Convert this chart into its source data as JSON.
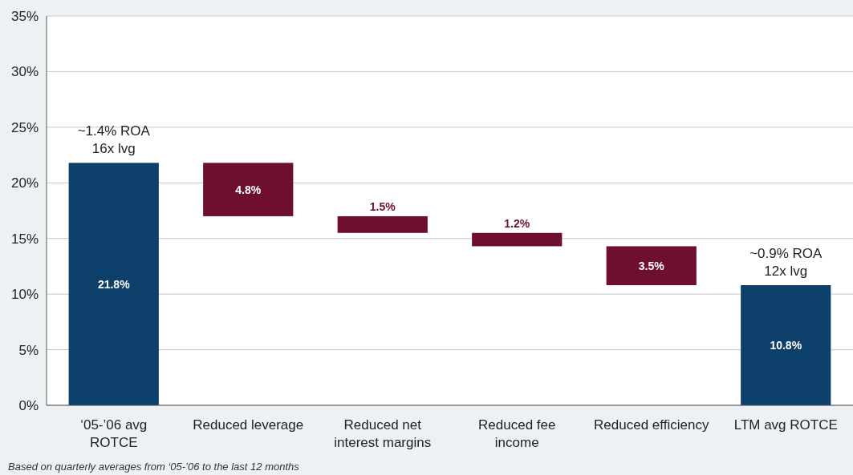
{
  "chart_data": {
    "type": "bar",
    "categories": [
      "‘05-’06 avg\nROTCE",
      "Reduced leverage",
      "Reduced net\ninterest margins",
      "Reduced fee\nincome",
      "Reduced efficiency",
      "LTM avg ROTCE"
    ],
    "values": [
      21.8,
      4.8,
      1.5,
      1.2,
      3.5,
      10.8
    ],
    "base": [
      0,
      17.0,
      15.5,
      14.3,
      10.8,
      0
    ],
    "colors": [
      "#0d3f6b",
      "#6e0f2e",
      "#6e0f2e",
      "#6e0f2e",
      "#6e0f2e",
      "#0d3f6b"
    ],
    "value_labels": [
      "21.8%",
      "4.8%",
      "1.5%",
      "1.2%",
      "3.5%",
      "10.8%"
    ],
    "ylim": [
      0,
      35
    ],
    "yticks": [
      {
        "value": 0,
        "label": "0%"
      },
      {
        "value": 5,
        "label": "5%"
      },
      {
        "value": 10,
        "label": "10%"
      },
      {
        "value": 15,
        "label": "15%"
      },
      {
        "value": 20,
        "label": "20%"
      },
      {
        "value": 25,
        "label": "25%"
      },
      {
        "value": 30,
        "label": "30%"
      },
      {
        "value": 35,
        "label": "35%"
      }
    ],
    "grid": "y",
    "annotations": [
      {
        "text": "~1.4% ROA\n16x lvg",
        "x": "‘05-’06 avg\nROTCE",
        "y": 21.8
      },
      {
        "text": "~0.9% ROA\n12x lvg",
        "x": "LTM avg ROTCE",
        "y": 10.8
      },
      "Based on quarterly averages from ‘05-’06 to the last 12 months"
    ]
  }
}
